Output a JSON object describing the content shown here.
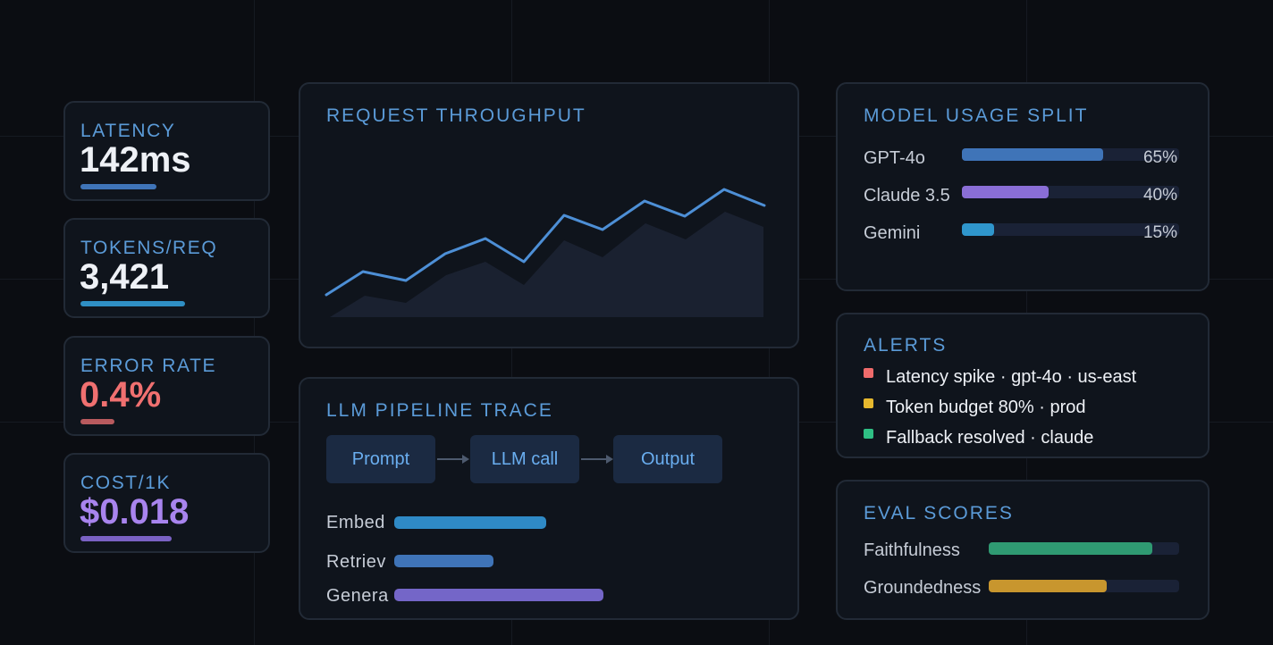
{
  "kpis": [
    {
      "label": "LATENCY",
      "value": "142ms",
      "value_color": "#eef1f6",
      "bar_color": "#3f74b8"
    },
    {
      "label": "TOKENS/REQ",
      "value": "3,421",
      "value_color": "#eef1f6",
      "bar_color": "#2f8fc4"
    },
    {
      "label": "ERROR RATE",
      "value": "0.4%",
      "value_color": "#f07070",
      "bar_color": "#b85a5e"
    },
    {
      "label": "COST/1K",
      "value": "$0.018",
      "value_color": "#a884ee",
      "bar_color": "#7a62c4"
    }
  ],
  "throughput": {
    "title": "REQUEST THROUGHPUT",
    "line_color": "#4d8fd6",
    "area_color": "#1a2130"
  },
  "pipeline": {
    "title": "LLM PIPELINE TRACE",
    "nodes": [
      "Prompt",
      "LLM call",
      "Output"
    ],
    "stages": [
      {
        "label": "Embed",
        "color": "#2f8ac6"
      },
      {
        "label": "Retriev",
        "color": "#3f74b8"
      },
      {
        "label": "Genera",
        "color": "#7466c8"
      }
    ]
  },
  "model_usage": {
    "title": "MODEL USAGE SPLIT",
    "rows": [
      {
        "name": "GPT-4o",
        "percent": 65,
        "label": "65%",
        "color": "#3f74b8"
      },
      {
        "name": "Claude 3.5",
        "percent": 40,
        "label": "40%",
        "color": "#8a6ed6"
      },
      {
        "name": "Gemini",
        "percent": 15,
        "label": "15%",
        "color": "#2f96cc"
      }
    ]
  },
  "alerts": {
    "title": "ALERTS",
    "items": [
      {
        "text": "Latency spike · gpt-4o · us-east",
        "color": "#ef6b6b"
      },
      {
        "text": "Token budget 80% · prod",
        "color": "#e6b82e"
      },
      {
        "text": "Fallback resolved · claude",
        "color": "#2fbf84"
      }
    ]
  },
  "eval": {
    "title": "EVAL SCORES",
    "rows": [
      {
        "name": "Faithfulness",
        "percent": 86,
        "color": "#2f9a72"
      },
      {
        "name": "Groundedness",
        "percent": 62,
        "color": "#c8962e"
      }
    ]
  }
}
